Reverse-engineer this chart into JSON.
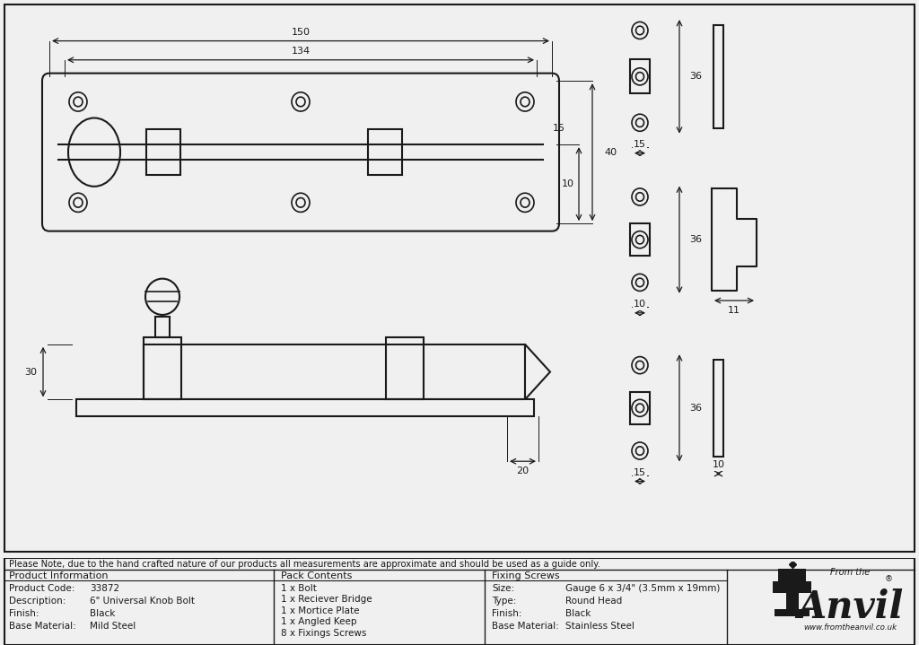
{
  "bg_color": "#f0f0f0",
  "line_color": "#1a1a1a",
  "note_text": "Please Note, due to the hand crafted nature of our products all measurements are approximate and should be used as a guide only.",
  "product_info": {
    "header": "Product Information",
    "rows": [
      [
        "Product Code:",
        "33872"
      ],
      [
        "Description:",
        "6\" Universal Knob Bolt"
      ],
      [
        "Finish:",
        "Black"
      ],
      [
        "Base Material:",
        "Mild Steel"
      ]
    ]
  },
  "pack_contents": {
    "header": "Pack Contents",
    "items": [
      "1 x Bolt",
      "1 x Reciever Bridge",
      "1 x Mortice Plate",
      "1 x Angled Keep",
      "8 x Fixings Screws"
    ]
  },
  "fixing_screws": {
    "header": "Fixing Screws",
    "rows": [
      [
        "Size:",
        "Gauge 6 x 3/4\" (3.5mm x 19mm)"
      ],
      [
        "Type:",
        "Round Head"
      ],
      [
        "Finish:",
        "Black"
      ],
      [
        "Base Material:",
        "Stainless Steel"
      ]
    ]
  }
}
